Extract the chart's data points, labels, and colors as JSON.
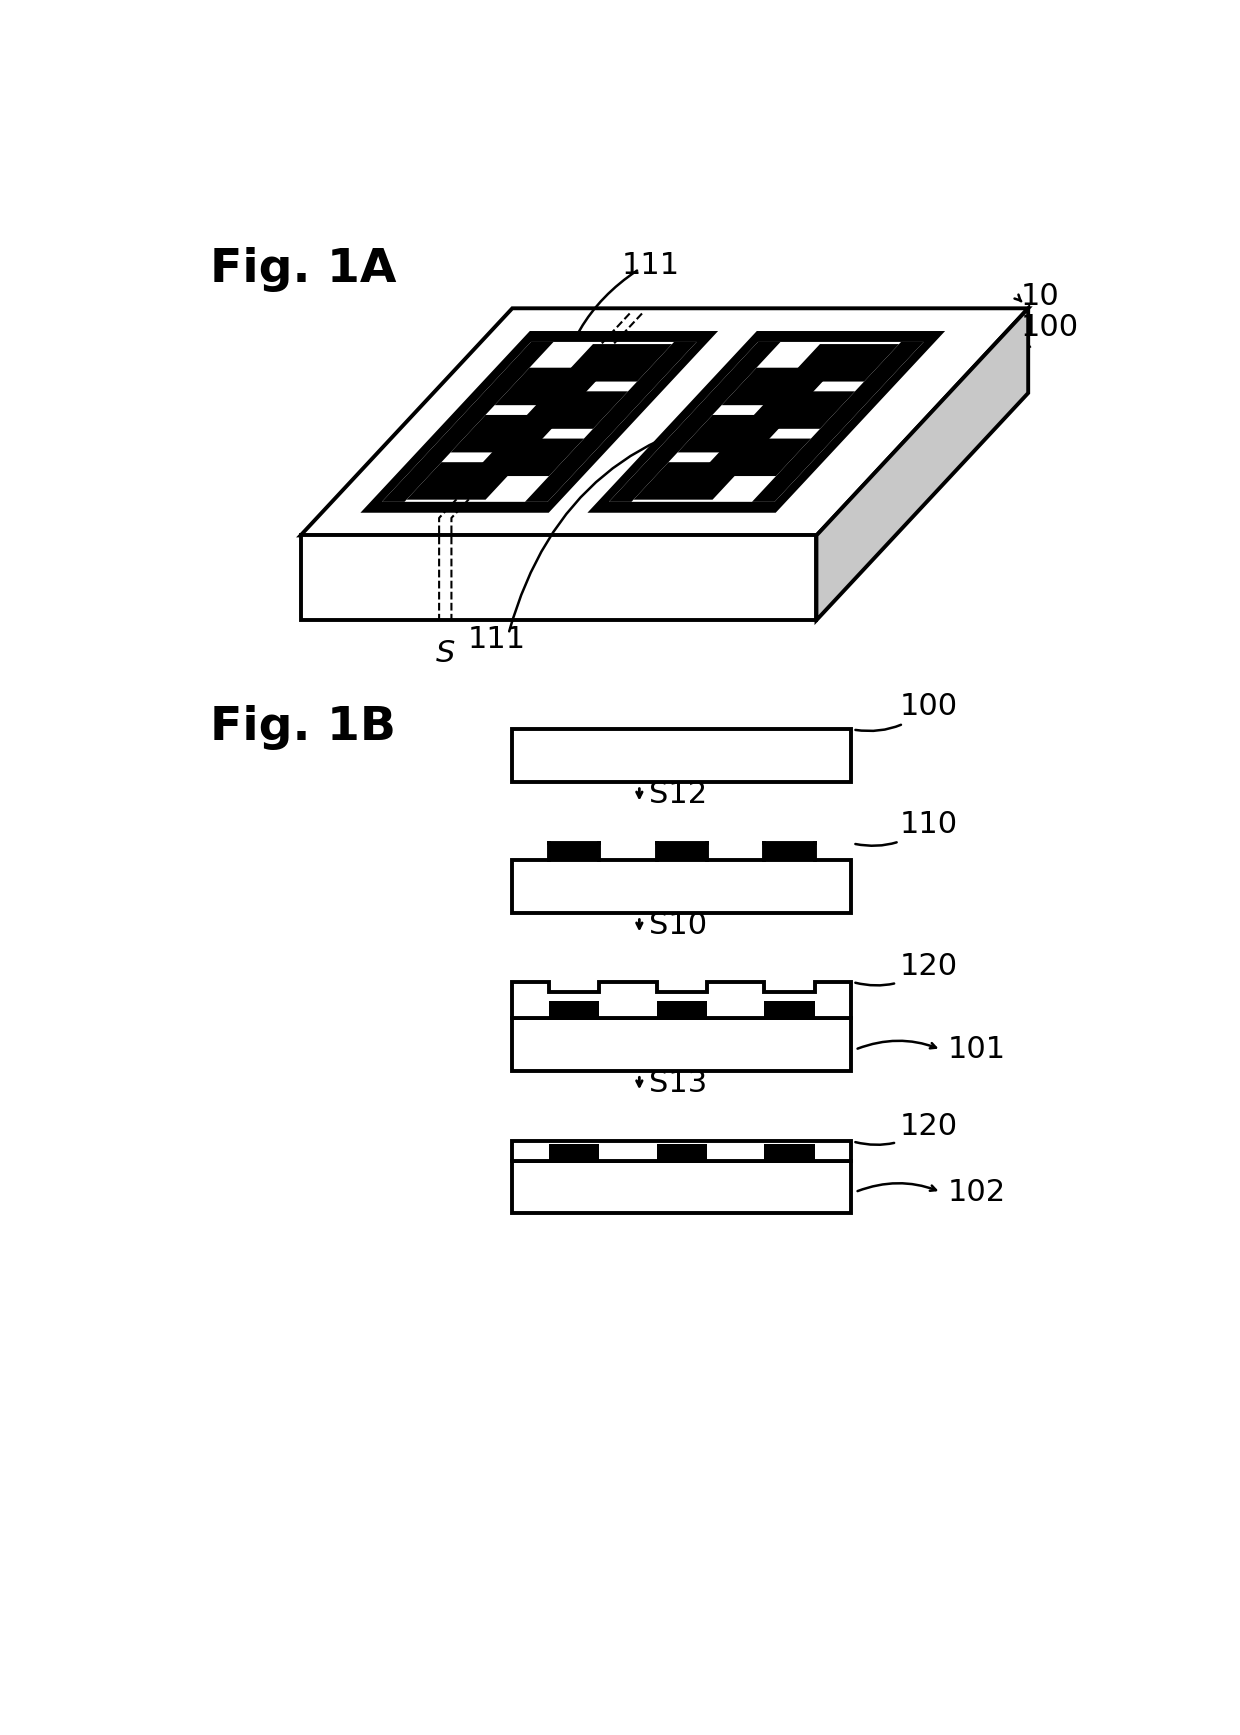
{
  "fig_title_1A": "Fig. 1A",
  "fig_title_1B": "Fig. 1B",
  "label_10": "10",
  "label_100_3d": "100",
  "label_111_top": "111",
  "label_111_bot": "111",
  "label_S": "S",
  "label_100_step1": "100",
  "label_110": "110",
  "label_S12": "S12",
  "label_S10": "S10",
  "label_S13": "S13",
  "label_120_1": "120",
  "label_120_2": "120",
  "label_101": "101",
  "label_102": "102",
  "bg_color": "#ffffff"
}
